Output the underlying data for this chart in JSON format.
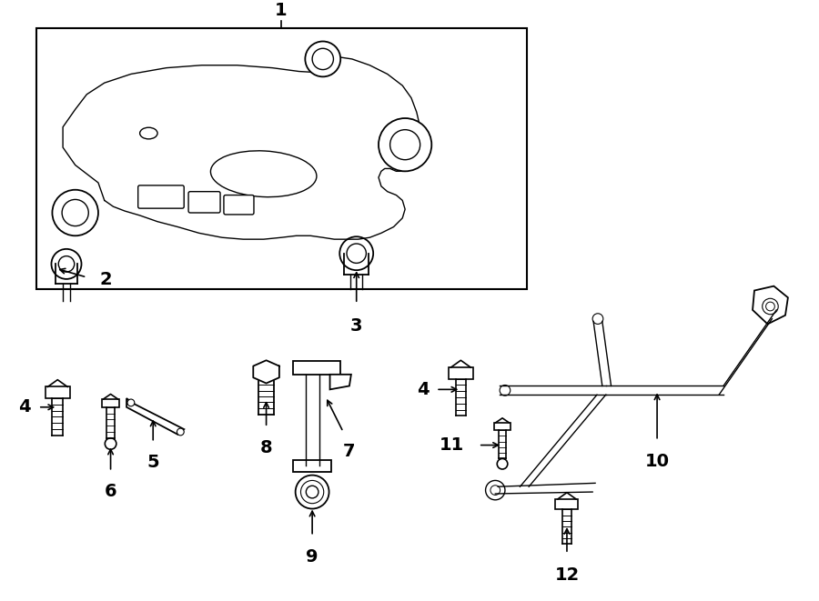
{
  "bg_color": "#ffffff",
  "line_color": "#000000",
  "fig_width": 9.0,
  "fig_height": 6.61
}
